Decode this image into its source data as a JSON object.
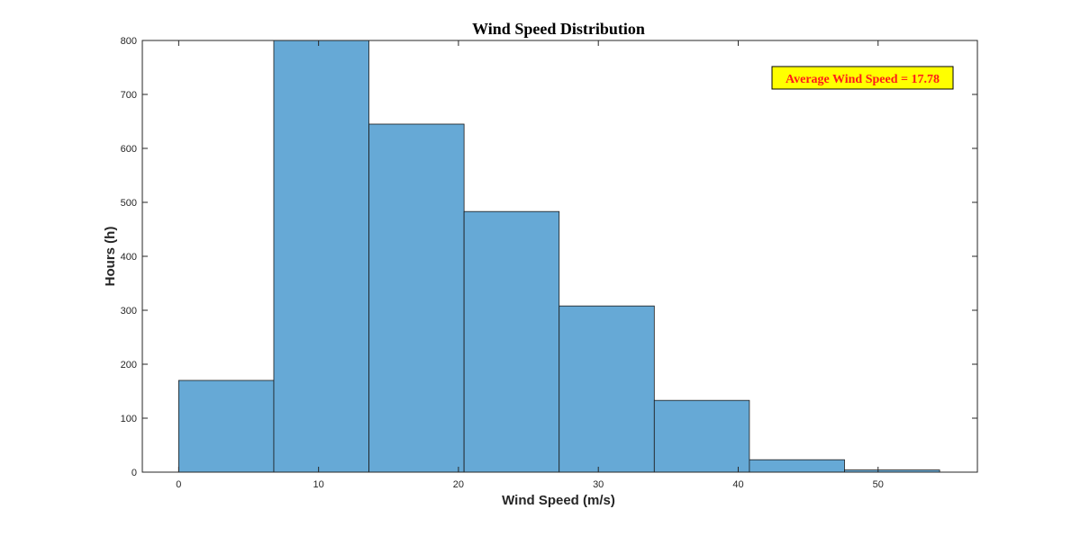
{
  "chart_data": {
    "type": "bar",
    "subtype": "histogram",
    "title": "Wind Speed Distribution",
    "xlabel": "Wind Speed (m/s)",
    "ylabel": "Hours (h)",
    "xlim": [
      -2.6,
      57.1
    ],
    "ylim": [
      0,
      800
    ],
    "xticks": [
      0,
      10,
      20,
      30,
      40,
      50
    ],
    "yticks": [
      0,
      100,
      200,
      300,
      400,
      500,
      600,
      700,
      800
    ],
    "grid": false,
    "bar_color": "#66a9d6",
    "bar_edge_color": "#1a1a1a",
    "bin_edges": [
      0,
      6.8,
      13.6,
      20.4,
      27.2,
      34.0,
      40.8,
      47.6,
      54.4
    ],
    "values": [
      170,
      800,
      645,
      483,
      308,
      133,
      23,
      4
    ],
    "annotation": {
      "text": "Average Wind Speed = 17.78",
      "text_color": "#ff1a1a",
      "background": "#ffff00",
      "border_color": "#000000"
    }
  }
}
